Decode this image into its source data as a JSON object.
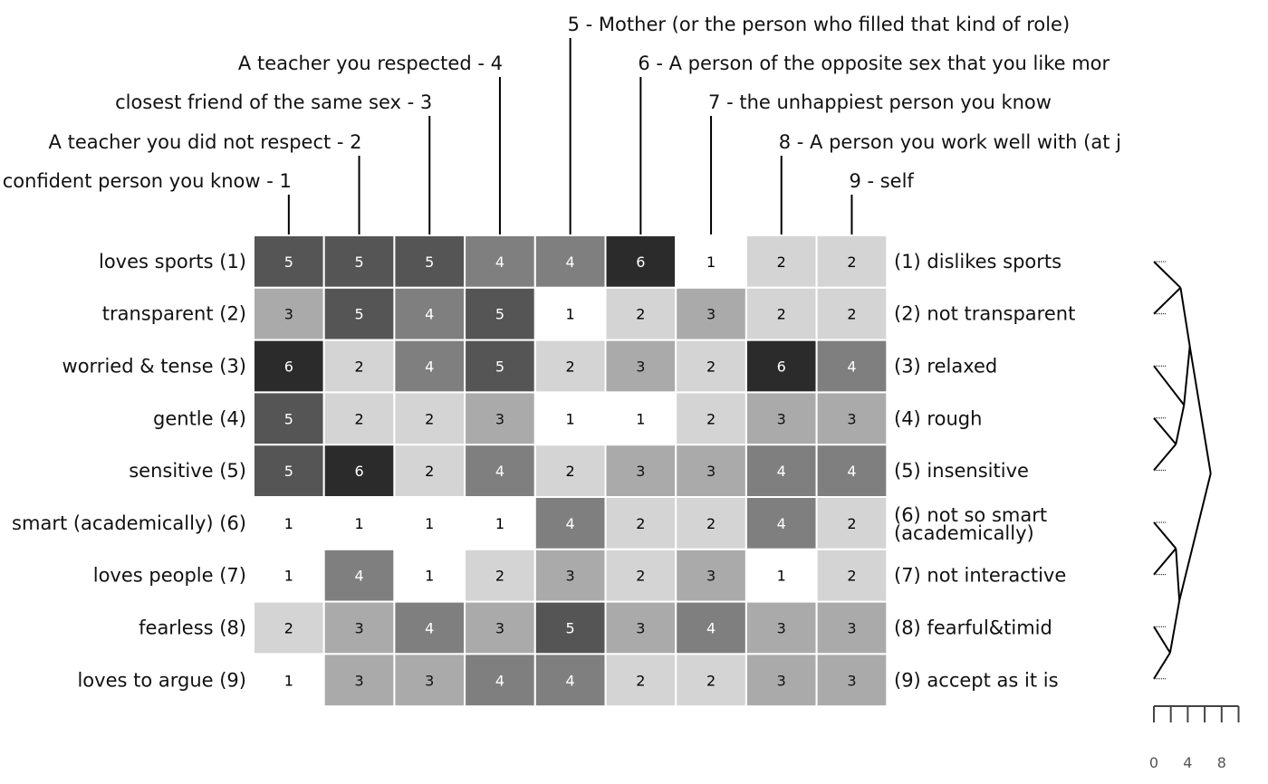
{
  "chart_data": {
    "type": "heatmap",
    "elements": [
      "confident person you know - 1",
      "A teacher you did not respect - 2",
      "closest friend of the same sex - 3",
      "A teacher you respected - 4",
      "5 - Mother (or the person who filled that kind of role)",
      "6 - A person of the opposite sex that you like mor",
      "7 - the unhappiest person you know",
      "8 - A person you work well with (at j",
      "9 - self"
    ],
    "left_poles": [
      "loves sports (1)",
      "transparent (2)",
      "worried & tense (3)",
      "gentle (4)",
      "sensitive (5)",
      "smart (academically) (6)",
      "loves people (7)",
      "fearless (8)",
      "loves to argue (9)"
    ],
    "right_poles": [
      [
        "(1) dislikes sports"
      ],
      [
        "(2) not transparent"
      ],
      [
        "(3) relaxed"
      ],
      [
        "(4) rough"
      ],
      [
        "(5) insensitive"
      ],
      [
        "(6) not so smart",
        "(academically)"
      ],
      [
        "(7) not interactive"
      ],
      [
        "(8) fearful&timid"
      ],
      [
        "(9) accept as it is"
      ]
    ],
    "values": [
      [
        5,
        5,
        5,
        4,
        4,
        6,
        1,
        2,
        2
      ],
      [
        3,
        5,
        4,
        5,
        1,
        2,
        3,
        2,
        2
      ],
      [
        6,
        2,
        4,
        5,
        2,
        3,
        2,
        6,
        4
      ],
      [
        5,
        2,
        2,
        3,
        1,
        1,
        2,
        3,
        3
      ],
      [
        5,
        6,
        2,
        4,
        2,
        3,
        3,
        4,
        4
      ],
      [
        1,
        1,
        1,
        1,
        4,
        2,
        2,
        4,
        2
      ],
      [
        1,
        4,
        1,
        2,
        3,
        2,
        3,
        1,
        2
      ],
      [
        2,
        3,
        4,
        3,
        5,
        3,
        4,
        3,
        3
      ],
      [
        1,
        3,
        3,
        4,
        4,
        2,
        2,
        3,
        3
      ]
    ],
    "colors": {
      "1": "#ffffff",
      "2": "#d4d4d4",
      "3": "#aaaaaa",
      "4": "#7f7f7f",
      "5": "#555555",
      "6": "#2b2b2b"
    },
    "dendrogram": {
      "row_order": [
        1,
        2,
        3,
        4,
        5,
        6,
        7,
        8,
        9
      ],
      "merges": [
        {
          "a": 4,
          "b": 5,
          "height": 1.9
        },
        {
          "a": 3,
          "b": "m1",
          "height": 2.6
        },
        {
          "a": 1,
          "b": 2,
          "height": 2.3
        },
        {
          "a": "m3",
          "b": "m2",
          "height": 3.1
        },
        {
          "a": 8,
          "b": 9,
          "height": 1.4
        },
        {
          "a": 6,
          "b": 7,
          "height": 1.9
        },
        {
          "a": "m6",
          "b": "m5",
          "height": 2.2
        },
        {
          "a": "m4",
          "b": "m7",
          "height": 4.9
        }
      ],
      "scale_ticks": [
        "0",
        "4",
        "8"
      ]
    }
  }
}
